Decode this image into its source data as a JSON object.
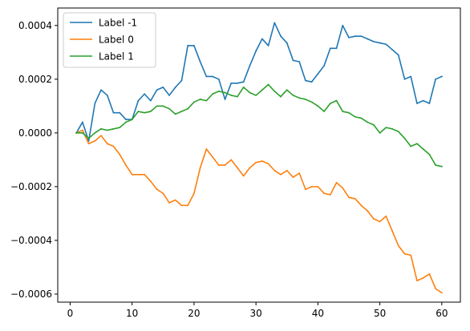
{
  "chart_data": {
    "type": "line",
    "title": "",
    "xlabel": "",
    "ylabel": "",
    "xlim": [
      -2,
      63
    ],
    "ylim": [
      -0.00063,
      0.000465
    ],
    "xticks": [
      0,
      10,
      20,
      30,
      40,
      50,
      60
    ],
    "xtick_labels": [
      "0",
      "10",
      "20",
      "30",
      "40",
      "50",
      "60"
    ],
    "yticks": [
      -0.0006,
      -0.0004,
      -0.0002,
      0.0,
      0.0002,
      0.0004
    ],
    "ytick_labels": [
      "−0.0006",
      "−0.0004",
      "−0.0002",
      "0.0000",
      "0.0002",
      "0.0004"
    ],
    "grid": false,
    "legend_position": "upper-left",
    "x": [
      1,
      2,
      3,
      4,
      5,
      6,
      7,
      8,
      9,
      10,
      11,
      12,
      13,
      14,
      15,
      16,
      17,
      18,
      19,
      20,
      21,
      22,
      23,
      24,
      25,
      26,
      27,
      28,
      29,
      30,
      31,
      32,
      33,
      34,
      35,
      36,
      37,
      38,
      39,
      40,
      41,
      42,
      43,
      44,
      45,
      46,
      47,
      48,
      49,
      50,
      51,
      52,
      53,
      54,
      55,
      56,
      57,
      58,
      59,
      60
    ],
    "series": [
      {
        "name": "Label -1",
        "color": "#1f77b4",
        "values": [
          0.0,
          4e-05,
          -3e-05,
          0.00011,
          0.00016,
          0.00014,
          7.5e-05,
          7.5e-05,
          5e-05,
          5e-05,
          0.00012,
          0.000145,
          0.00012,
          0.00016,
          0.00017,
          0.00014,
          0.00017,
          0.000195,
          0.000325,
          0.000325,
          0.000265,
          0.00021,
          0.00021,
          0.0002,
          0.000125,
          0.000185,
          0.000185,
          0.00019,
          0.00025,
          0.000305,
          0.00035,
          0.000325,
          0.00041,
          0.00036,
          0.000335,
          0.00027,
          0.000265,
          0.000195,
          0.00019,
          0.00022,
          0.00025,
          0.000315,
          0.000315,
          0.0004,
          0.000355,
          0.00036,
          0.00036,
          0.00035,
          0.00034,
          0.000335,
          0.00033,
          0.00031,
          0.00029,
          0.0002,
          0.00021,
          0.00011,
          0.00012,
          0.00011,
          0.0002,
          0.00021
        ]
      },
      {
        "name": "Label 0",
        "color": "#ff7f0e",
        "values": [
          0.0,
          1e-05,
          -4e-05,
          -3e-05,
          -1e-05,
          -4e-05,
          -5e-05,
          -8e-05,
          -0.00012,
          -0.000155,
          -0.000155,
          -0.000155,
          -0.00018,
          -0.00021,
          -0.000225,
          -0.00026,
          -0.00025,
          -0.00027,
          -0.00027,
          -0.000225,
          -0.00013,
          -6e-05,
          -9e-05,
          -0.00012,
          -0.00012,
          -0.0001,
          -0.00013,
          -0.00016,
          -0.00013,
          -0.00011,
          -0.000105,
          -0.000115,
          -0.00014,
          -0.000155,
          -0.00014,
          -0.000165,
          -0.00015,
          -0.00021,
          -0.0002,
          -0.0002,
          -0.000225,
          -0.00023,
          -0.000185,
          -0.000205,
          -0.00024,
          -0.000245,
          -0.00027,
          -0.00029,
          -0.00032,
          -0.00033,
          -0.00031,
          -0.000365,
          -0.00042,
          -0.00045,
          -0.000455,
          -0.00055,
          -0.00054,
          -0.000525,
          -0.00058,
          -0.000595
        ]
      },
      {
        "name": "Label 1",
        "color": "#2ca02c",
        "values": [
          0.0,
          0.0,
          -2e-05,
          0.0,
          1.5e-05,
          1e-05,
          1.5e-05,
          2e-05,
          4e-05,
          5e-05,
          8e-05,
          7.5e-05,
          8e-05,
          0.0001,
          0.0001,
          9e-05,
          7e-05,
          8e-05,
          9e-05,
          0.000115,
          0.000125,
          0.00012,
          0.000145,
          0.000155,
          0.00015,
          0.00014,
          0.000135,
          0.00017,
          0.00015,
          0.00014,
          0.00016,
          0.00018,
          0.000155,
          0.000135,
          0.00016,
          0.00014,
          0.00013,
          0.000125,
          0.000115,
          0.0001,
          8e-05,
          0.00011,
          0.00012,
          8e-05,
          7.5e-05,
          6e-05,
          5.5e-05,
          4e-05,
          3e-05,
          0.0,
          2e-05,
          1.5e-05,
          5e-06,
          -2e-05,
          -5e-05,
          -4e-05,
          -6e-05,
          -8e-05,
          -0.00012,
          -0.000125
        ]
      }
    ]
  }
}
